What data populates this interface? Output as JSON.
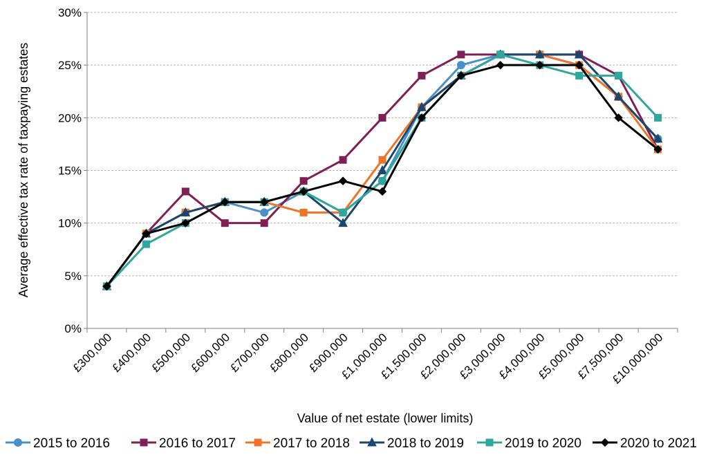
{
  "chart_data": {
    "type": "line",
    "title": "",
    "xlabel": "Value of net estate (lower limits)",
    "ylabel": "Average effective tax rate of taxpaying estates",
    "categories": [
      "£300,000",
      "£400,000",
      "£500,000",
      "£600,000",
      "£700,000",
      "£800,000",
      "£900,000",
      "£1,000,000",
      "£1,500,000",
      "£2,000,000",
      "£3,000,000",
      "£4,000,000",
      "£5,000,000",
      "£7,500,000",
      "£10,000,000"
    ],
    "y_ticks": [
      "0%",
      "5%",
      "10%",
      "15%",
      "20%",
      "25%",
      "30%"
    ],
    "ylim": [
      0,
      30
    ],
    "y_unit": "%",
    "grid": "horizontal dashed",
    "legend_position": "bottom",
    "series": [
      {
        "name": "2015 to 2016",
        "color": "#4A90C8",
        "marker": "circle",
        "values": [
          4,
          9,
          11,
          12,
          11,
          13,
          11,
          14,
          21,
          25,
          26,
          26,
          25,
          22,
          18
        ]
      },
      {
        "name": "2016 to 2017",
        "color": "#7E1F55",
        "marker": "square",
        "values": [
          4,
          9,
          13,
          10,
          10,
          14,
          16,
          20,
          24,
          26,
          26,
          26,
          26,
          24,
          17
        ]
      },
      {
        "name": "2017 to 2018",
        "color": "#F07427",
        "marker": "square",
        "values": [
          4,
          9,
          11,
          12,
          12,
          11,
          11,
          16,
          21,
          24,
          26,
          26,
          25,
          22,
          17
        ]
      },
      {
        "name": "2018 to 2019",
        "color": "#1C466E",
        "marker": "triangle",
        "values": [
          4,
          9,
          11,
          12,
          12,
          13,
          10,
          15,
          21,
          24,
          26,
          26,
          26,
          22,
          18
        ]
      },
      {
        "name": "2019 to 2020",
        "color": "#2FA79F",
        "marker": "square",
        "values": [
          4,
          8,
          10,
          12,
          12,
          13,
          11,
          14,
          20,
          24,
          26,
          25,
          24,
          24,
          20
        ]
      },
      {
        "name": "2020 to 2021",
        "color": "#000000",
        "marker": "diamond",
        "values": [
          4,
          9,
          10,
          12,
          12,
          13,
          14,
          13,
          20,
          24,
          25,
          25,
          25,
          20,
          17
        ]
      }
    ]
  }
}
